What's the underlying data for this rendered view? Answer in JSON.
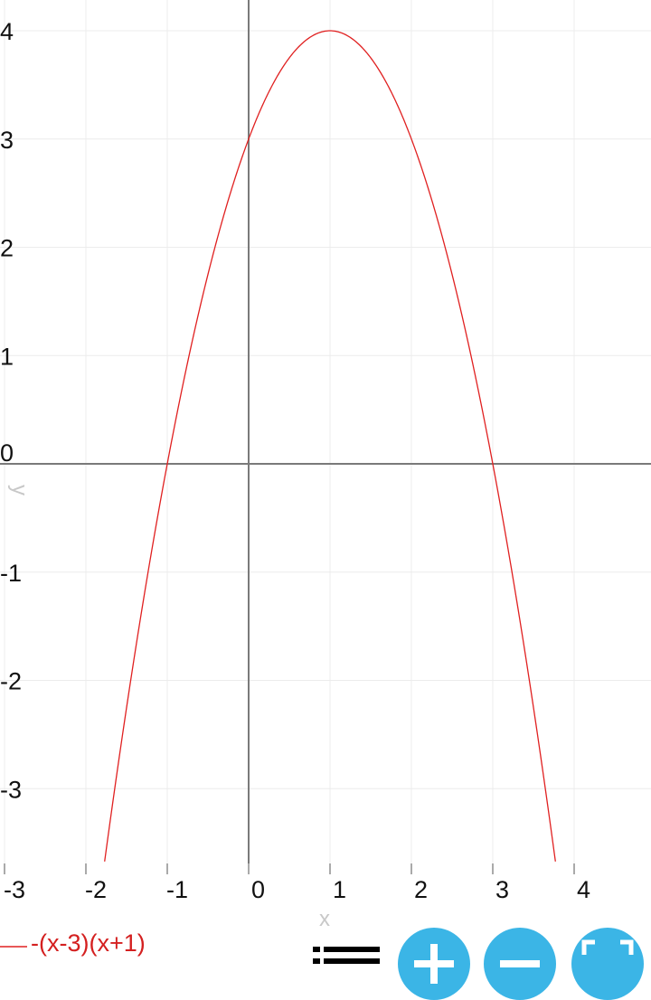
{
  "chart_data": {
    "type": "line",
    "series": [
      {
        "name": "-(x-3)(x+1)",
        "expression": "-(x-3)(x+1)",
        "color": "#e02020",
        "x_range": [
          -1.77,
          3.77
        ]
      }
    ],
    "xlabel": "x",
    "ylabel": "y",
    "xlim": [
      -3.05,
      4.95
    ],
    "ylim": [
      -3.69,
      4.28
    ],
    "x_ticks": [
      "-3",
      "-2",
      "-1",
      "0",
      "1",
      "2",
      "3",
      "4"
    ],
    "y_ticks": [
      "4",
      "3",
      "2",
      "1",
      "0",
      "-1",
      "-2",
      "-3"
    ],
    "grid": true,
    "legend_position": "bottom-left"
  },
  "controls": {
    "accent_color": "#3bb5e6",
    "buttons": [
      "list-icon",
      "zoom-in-icon",
      "zoom-out-icon",
      "fullscreen-icon"
    ]
  }
}
